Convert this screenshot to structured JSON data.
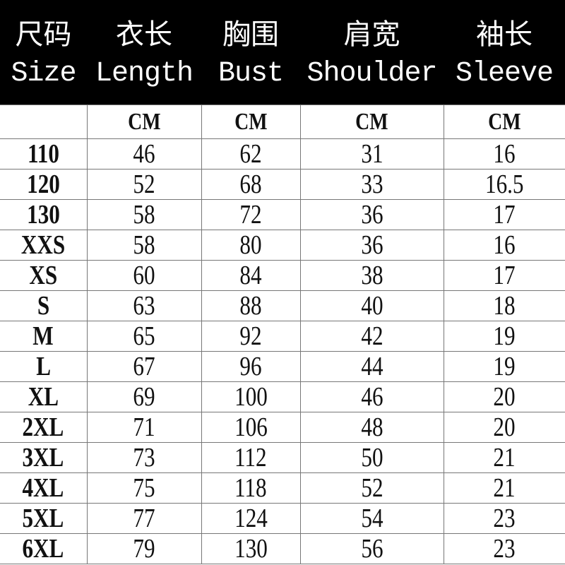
{
  "headers": [
    {
      "zh": "尺码",
      "en": "Size"
    },
    {
      "zh": "衣长",
      "en": "Length"
    },
    {
      "zh": "胸围",
      "en": "Bust"
    },
    {
      "zh": "肩宽",
      "en": "Shoulder"
    },
    {
      "zh": "袖长",
      "en": "Sleeve"
    }
  ],
  "units": [
    "",
    "CM",
    "CM",
    "CM",
    "CM"
  ],
  "rows": [
    [
      "110",
      "46",
      "62",
      "31",
      "16"
    ],
    [
      "120",
      "52",
      "68",
      "33",
      "16.5"
    ],
    [
      "130",
      "58",
      "72",
      "36",
      "17"
    ],
    [
      "XXS",
      "58",
      "80",
      "36",
      "16"
    ],
    [
      "XS",
      "60",
      "84",
      "38",
      "17"
    ],
    [
      "S",
      "63",
      "88",
      "40",
      "18"
    ],
    [
      "M",
      "65",
      "92",
      "42",
      "19"
    ],
    [
      "L",
      "67",
      "96",
      "44",
      "19"
    ],
    [
      "XL",
      "69",
      "100",
      "46",
      "20"
    ],
    [
      "2XL",
      "71",
      "106",
      "48",
      "20"
    ],
    [
      "3XL",
      "73",
      "112",
      "50",
      "21"
    ],
    [
      "4XL",
      "75",
      "118",
      "52",
      "21"
    ],
    [
      "5XL",
      "77",
      "124",
      "54",
      "23"
    ],
    [
      "6XL",
      "79",
      "130",
      "56",
      "23"
    ]
  ]
}
